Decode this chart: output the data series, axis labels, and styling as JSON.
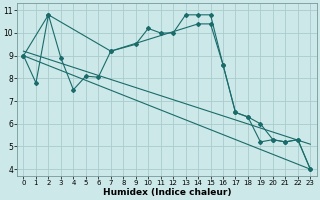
{
  "xlabel": "Humidex (Indice chaleur)",
  "background_color": "#cce8e8",
  "grid_color": "#aacccc",
  "line_color": "#1a6b6b",
  "xlim": [
    -0.5,
    23.5
  ],
  "ylim": [
    3.7,
    11.3
  ],
  "yticks": [
    4,
    5,
    6,
    7,
    8,
    9,
    10,
    11
  ],
  "xticks": [
    0,
    1,
    2,
    3,
    4,
    5,
    6,
    7,
    8,
    9,
    10,
    11,
    12,
    13,
    14,
    15,
    16,
    17,
    18,
    19,
    20,
    21,
    22,
    23
  ],
  "line1_x": [
    0,
    1,
    2,
    3,
    4,
    5,
    6,
    7,
    14,
    15,
    16,
    17,
    18,
    19,
    20,
    21,
    22,
    23
  ],
  "line1_y": [
    9.0,
    7.8,
    10.8,
    8.9,
    7.5,
    8.1,
    8.05,
    9.2,
    10.4,
    10.4,
    8.6,
    6.5,
    6.3,
    6.0,
    5.3,
    5.2,
    5.3,
    4.0
  ],
  "line2_x": [
    0,
    2,
    7,
    9,
    10,
    11,
    12,
    13,
    14,
    15,
    16,
    17,
    18,
    19,
    20,
    21,
    22,
    23
  ],
  "line2_y": [
    9.0,
    10.8,
    9.2,
    9.5,
    10.2,
    10.0,
    10.0,
    10.8,
    10.8,
    10.8,
    8.6,
    6.5,
    6.3,
    5.2,
    5.3,
    5.2,
    5.3,
    4.0
  ],
  "line3_x": [
    0,
    23
  ],
  "line3_y": [
    9.0,
    4.0
  ],
  "line4_x": [
    0,
    23
  ],
  "line4_y": [
    9.2,
    5.1
  ]
}
